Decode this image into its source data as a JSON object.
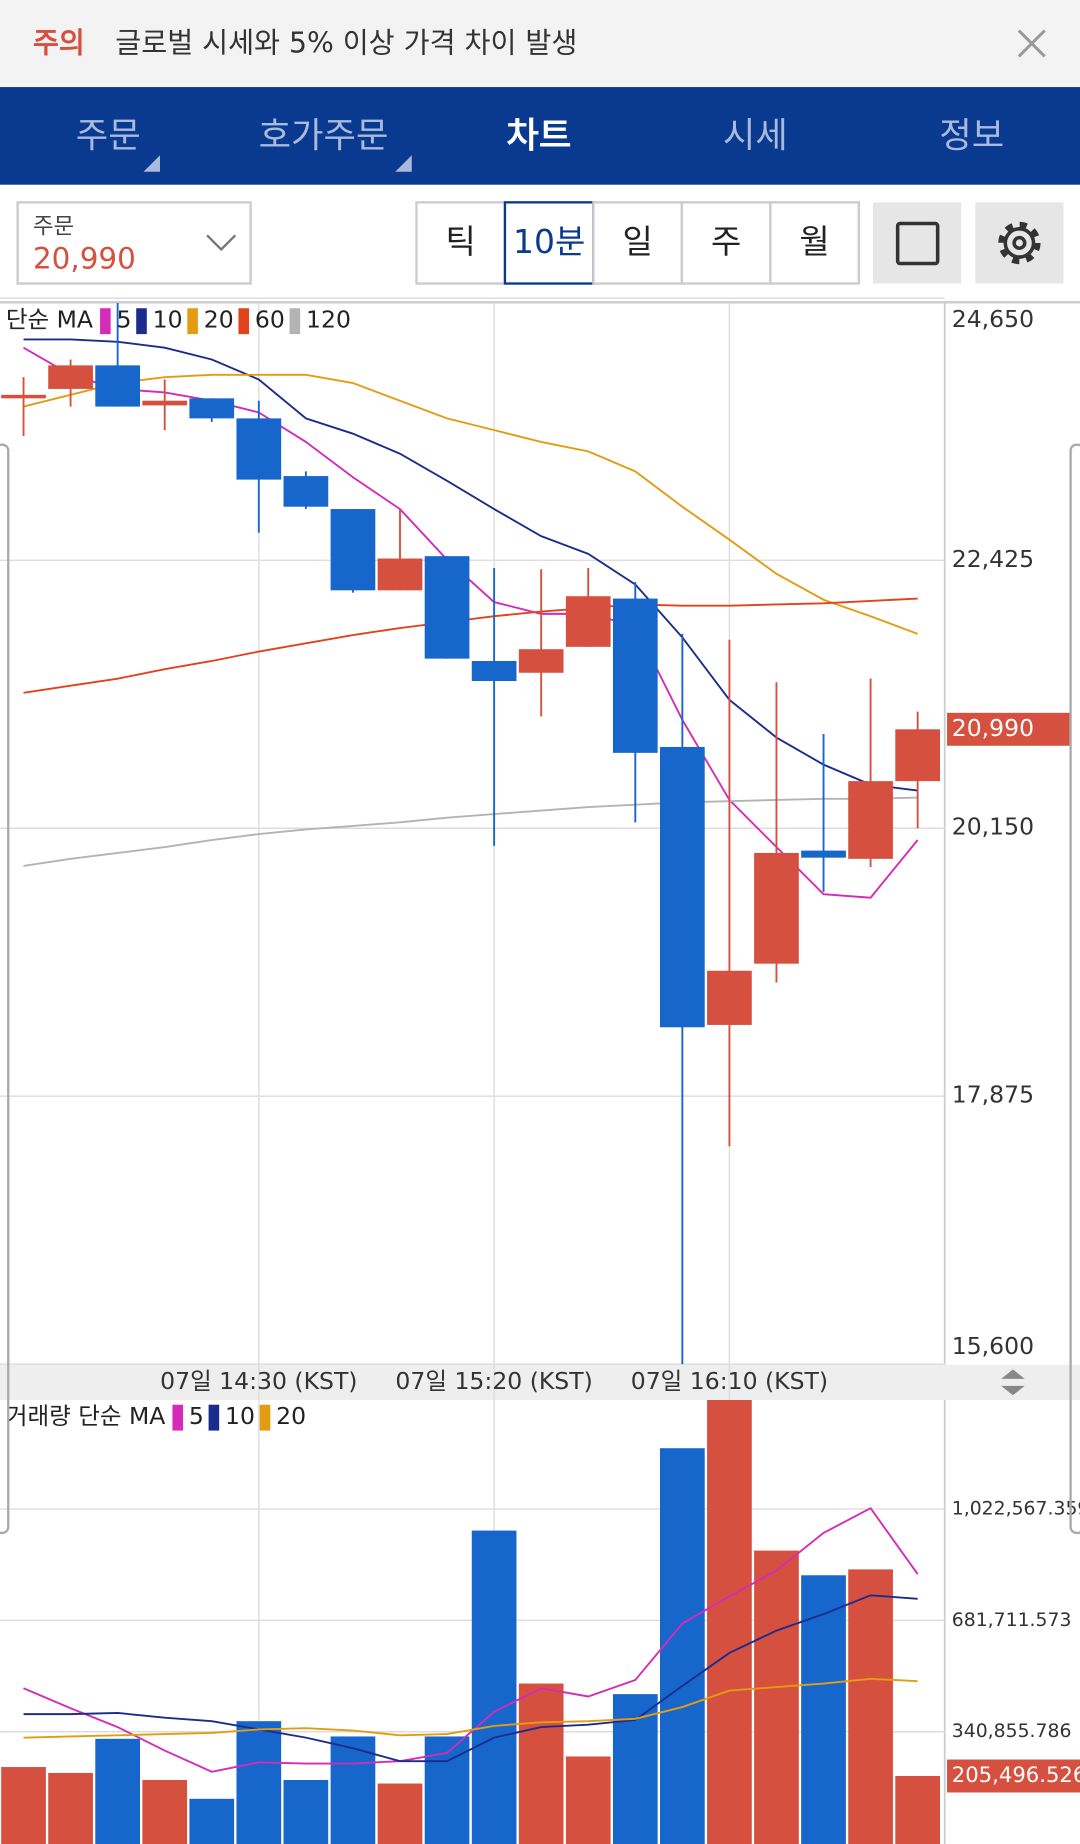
{
  "notice": {
    "label": "주의",
    "text": "글로벌 시세와 5% 이상 가격 차이 발생"
  },
  "tabs": [
    "주문",
    "호가주문",
    "차트",
    "시세",
    "정보"
  ],
  "order_box": {
    "label": "주문",
    "price": "20,990"
  },
  "periods": [
    "틱",
    "10분",
    "일",
    "주",
    "월"
  ],
  "chart_data": [
    {
      "type": "candlestick",
      "legend_title": "단순 MA",
      "categories": [
        null,
        null,
        null,
        null,
        null,
        "07일 14:30 (KST)",
        null,
        null,
        null,
        null,
        "07일 15:20 (KST)",
        null,
        null,
        null,
        null,
        "07일 16:10 (KST)",
        null,
        null,
        null,
        null
      ],
      "open": [
        23830,
        23880,
        24080,
        23740,
        23800,
        23630,
        23140,
        22860,
        22170,
        22460,
        21570,
        21470,
        21690,
        22100,
        20840,
        18480,
        19000,
        19960,
        19890,
        20550
      ],
      "high": [
        23980,
        24130,
        24610,
        23960,
        23800,
        23780,
        23180,
        22860,
        22860,
        22460,
        22360,
        22350,
        22360,
        22240,
        21800,
        21750,
        21390,
        20950,
        21420,
        21140
      ],
      "low": [
        23480,
        23730,
        23730,
        23530,
        23600,
        22660,
        22860,
        22150,
        22170,
        21590,
        20000,
        21100,
        21690,
        20200,
        15600,
        17450,
        18840,
        19610,
        19820,
        20150
      ],
      "close": [
        23830,
        24080,
        23730,
        23780,
        23630,
        23110,
        22880,
        22170,
        22440,
        21590,
        21400,
        21670,
        22120,
        20790,
        18460,
        18940,
        19940,
        19900,
        20550,
        20990
      ],
      "up_color": "#d6503f",
      "down_color": "#1666cb",
      "series": [
        {
          "name": "5",
          "color": "#d42bb9",
          "values": [
            24230,
            24000,
            23880,
            23850,
            23780,
            23680,
            23430,
            23130,
            22860,
            22430,
            22070,
            21970,
            21970,
            21870,
            21070,
            20390,
            19990,
            19590,
            19560,
            20050
          ]
        },
        {
          "name": "10",
          "color": "#1b2d8c",
          "values": [
            24300,
            24300,
            24280,
            24230,
            24130,
            23960,
            23630,
            23500,
            23330,
            23100,
            22860,
            22630,
            22480,
            22220,
            21770,
            21240,
            20920,
            20690,
            20520,
            20470
          ]
        },
        {
          "name": "20",
          "color": "#e39c12",
          "values": [
            23730,
            23830,
            23930,
            23980,
            24000,
            24000,
            24000,
            23930,
            23780,
            23630,
            23530,
            23430,
            23350,
            23180,
            22880,
            22600,
            22310,
            22090,
            21950,
            21800
          ]
        },
        {
          "name": "60",
          "color": "#e2431c",
          "values": [
            21300,
            21360,
            21420,
            21500,
            21570,
            21650,
            21720,
            21790,
            21850,
            21900,
            21950,
            21990,
            22020,
            22050,
            22040,
            22040,
            22050,
            22060,
            22080,
            22100
          ]
        },
        {
          "name": "120",
          "color": "#b3b3b3",
          "values": [
            19830,
            19890,
            19940,
            19990,
            20050,
            20100,
            20140,
            20170,
            20200,
            20240,
            20270,
            20300,
            20330,
            20350,
            20370,
            20380,
            20390,
            20400,
            20400,
            20410
          ]
        }
      ],
      "ylim": [
        15600,
        24650
      ],
      "yticks": [
        {
          "value": 15600,
          "label": "15,600"
        },
        {
          "value": 17875,
          "label": "17,875"
        },
        {
          "value": 20150,
          "label": "20,150"
        },
        {
          "value": 22425,
          "label": "22,425"
        },
        {
          "value": 24650,
          "label": "24,650"
        }
      ],
      "current_price": {
        "value": 20990,
        "label": "20,990"
      },
      "grid": true
    },
    {
      "type": "bar",
      "legend_title": "거래량 단순 MA",
      "values": [
        232900,
        214900,
        319300,
        193300,
        135700,
        373200,
        193300,
        326500,
        182500,
        326500,
        956300,
        488400,
        265300,
        456000,
        1208300,
        1360000,
        895100,
        819600,
        837600,
        205496.526
      ],
      "up_color": "#d6503f",
      "down_color": "#1666cb",
      "series": [
        {
          "name": "5",
          "color": "#d42bb9",
          "values": [
            474000,
            412800,
            355200,
            283300,
            218500,
            247300,
            243700,
            243700,
            250900,
            276100,
            402000,
            474000,
            448800,
            499200,
            672000,
            754800,
            834000,
            949100,
            1024700,
            823200
          ]
        },
        {
          "name": "10",
          "color": "#1b2d8c",
          "values": [
            394800,
            394800,
            398400,
            384000,
            373200,
            348100,
            322900,
            290500,
            250900,
            250900,
            322900,
            355200,
            362400,
            376800,
            481200,
            582000,
            650400,
            700800,
            758400,
            747600
          ]
        },
        {
          "name": "20",
          "color": "#e39c12",
          "values": [
            322900,
            326500,
            330100,
            333700,
            337200,
            348100,
            351700,
            344500,
            330100,
            333700,
            358800,
            369600,
            373200,
            380400,
            416400,
            466800,
            477600,
            488400,
            502800,
            495600
          ]
        }
      ],
      "ylim": [
        0,
        1355800
      ],
      "yticks": [
        {
          "value": 340855.786,
          "label": "340,855.786"
        },
        {
          "value": 681711.573,
          "label": "681,711.573"
        },
        {
          "value": 1022567.359,
          "label": "1,022,567.359"
        }
      ],
      "last_value": {
        "value": 205496.526,
        "label": "205,496.526"
      },
      "grid": true
    }
  ]
}
